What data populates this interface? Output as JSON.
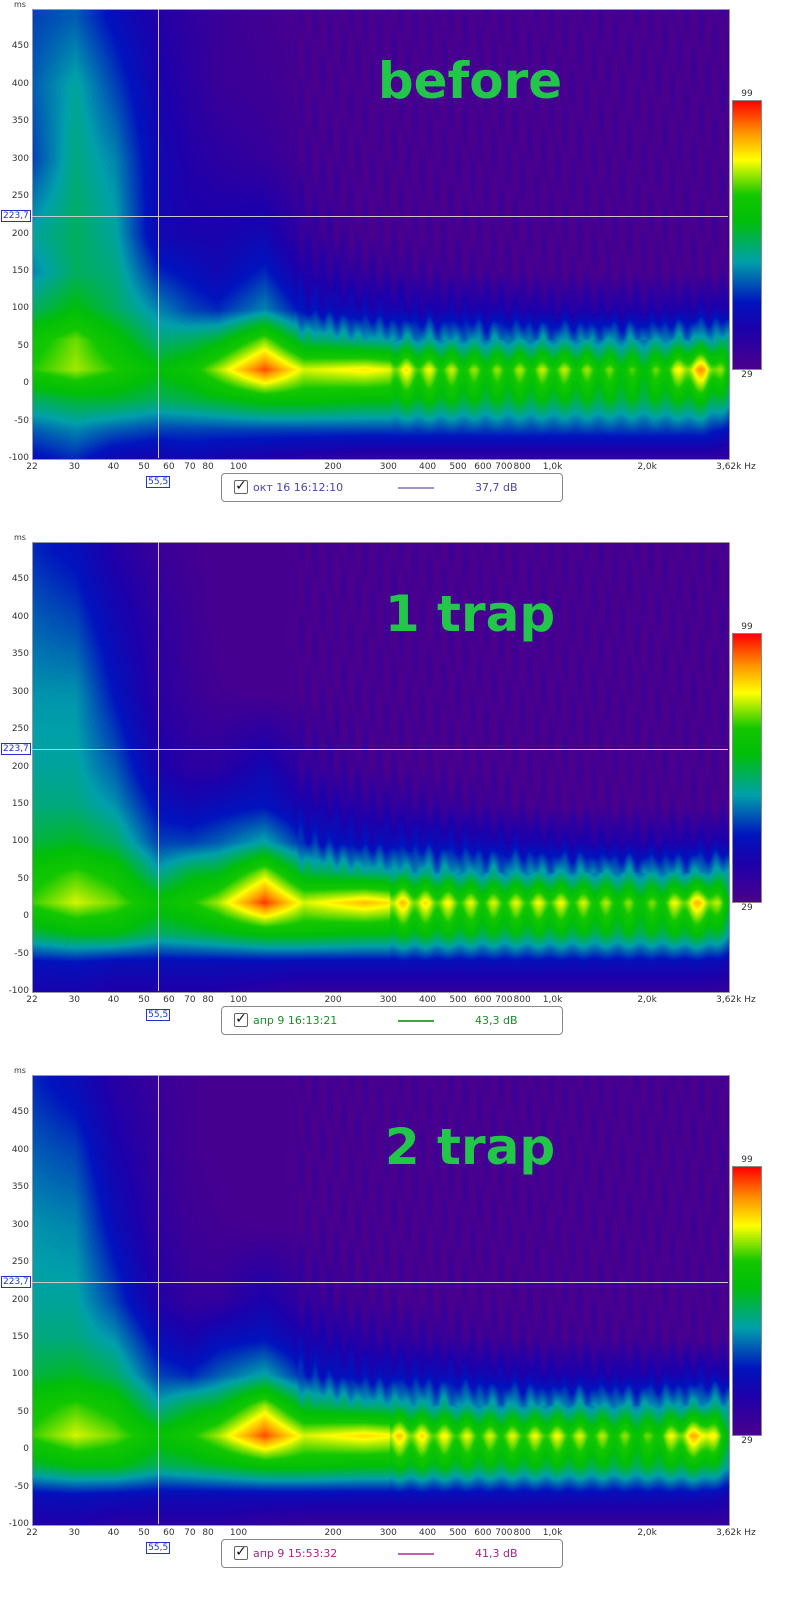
{
  "chart_data": [
    {
      "type": "heatmap",
      "title": "before",
      "ylabel": "ms",
      "xunit": "Hz",
      "xscale": "log",
      "xlim": [
        22,
        3620
      ],
      "ylim": [
        -100,
        500
      ],
      "yticks": [
        "450",
        "400",
        "350",
        "300",
        "250",
        "200",
        "150",
        "100",
        "50",
        "0",
        "-50",
        "-100"
      ],
      "xticks": [
        "22",
        "30",
        "40",
        "50",
        "60",
        "70",
        "80",
        "100",
        "200",
        "300",
        "400",
        "500",
        "600",
        "700",
        "800",
        "1,0k",
        "2,0k",
        "3,62k Hz"
      ],
      "colorbar": {
        "min": 29,
        "max": 99,
        "min_label": "29",
        "max_label": "99"
      },
      "cursor": {
        "freq": 55.5,
        "freq_label": "55,5",
        "time": 223.7,
        "time_label": "223,7"
      },
      "legend": {
        "checked": true,
        "label": "окт 16 16:12:10",
        "value": "37,7 dB",
        "text_color": "#4a48a8",
        "line_color": "#9a98c8"
      },
      "grid_freqs": [
        22,
        30,
        40,
        55,
        70,
        85,
        120,
        160,
        250,
        380,
        600,
        1000,
        2000,
        3000,
        3620
      ],
      "grid_times": [
        -100,
        -60,
        -20,
        20,
        60,
        100,
        150,
        200,
        300,
        400,
        490
      ],
      "values_db": [
        [
          45,
          48,
          42,
          40,
          42,
          40,
          38,
          36,
          34,
          34,
          34,
          34,
          34,
          34,
          34
        ],
        [
          52,
          55,
          52,
          50,
          50,
          50,
          50,
          50,
          50,
          50,
          50,
          50,
          50,
          50,
          45
        ],
        [
          62,
          65,
          65,
          62,
          64,
          66,
          70,
          70,
          68,
          68,
          66,
          66,
          65,
          68,
          60
        ],
        [
          75,
          80,
          75,
          68,
          72,
          80,
          95,
          82,
          85,
          80,
          75,
          78,
          72,
          88,
          70
        ],
        [
          72,
          78,
          70,
          60,
          62,
          65,
          78,
          62,
          58,
          56,
          55,
          55,
          55,
          58,
          58
        ],
        [
          62,
          68,
          62,
          55,
          50,
          48,
          55,
          45,
          42,
          40,
          40,
          38,
          38,
          40,
          40
        ],
        [
          55,
          62,
          60,
          48,
          45,
          42,
          48,
          38,
          34,
          32,
          31,
          30,
          30,
          30,
          30
        ],
        [
          58,
          62,
          58,
          42,
          40,
          40,
          42,
          34,
          30,
          30,
          30,
          30,
          30,
          30,
          30
        ],
        [
          50,
          60,
          55,
          42,
          38,
          36,
          34,
          31,
          30,
          30,
          30,
          30,
          30,
          30,
          30
        ],
        [
          52,
          58,
          50,
          40,
          36,
          33,
          32,
          30,
          30,
          30,
          30,
          30,
          30,
          30,
          30
        ],
        [
          50,
          52,
          45,
          38,
          35,
          33,
          31,
          30,
          30,
          30,
          30,
          30,
          30,
          30,
          30
        ]
      ]
    },
    {
      "type": "heatmap",
      "title": "1 trap",
      "ylabel": "ms",
      "xunit": "Hz",
      "xscale": "log",
      "xlim": [
        22,
        3620
      ],
      "ylim": [
        -100,
        500
      ],
      "yticks": [
        "450",
        "400",
        "350",
        "300",
        "250",
        "200",
        "150",
        "100",
        "50",
        "0",
        "-50",
        "-100"
      ],
      "xticks": [
        "22",
        "30",
        "40",
        "50",
        "60",
        "70",
        "80",
        "100",
        "200",
        "300",
        "400",
        "500",
        "600",
        "700",
        "800",
        "1,0k",
        "2,0k",
        "3,62k Hz"
      ],
      "colorbar": {
        "min": 29,
        "max": 99,
        "min_label": "29",
        "max_label": "99"
      },
      "cursor": {
        "freq": 55.5,
        "freq_label": "55,5",
        "time": 223.7,
        "time_label": "223,7"
      },
      "legend": {
        "checked": true,
        "label": "апр 9 16:13:21",
        "value": "43,3 dB",
        "text_color": "#1e8a2a",
        "line_color": "#3aa83a"
      },
      "grid_freqs": [
        22,
        30,
        40,
        55,
        70,
        85,
        120,
        160,
        250,
        380,
        600,
        1000,
        2000,
        3000,
        3620
      ],
      "grid_times": [
        -100,
        -60,
        -20,
        20,
        60,
        100,
        150,
        200,
        300,
        400,
        490
      ],
      "values_db": [
        [
          40,
          40,
          38,
          38,
          38,
          38,
          36,
          34,
          34,
          34,
          34,
          34,
          34,
          34,
          34
        ],
        [
          45,
          46,
          44,
          44,
          44,
          44,
          44,
          44,
          44,
          44,
          44,
          44,
          44,
          44,
          42
        ],
        [
          64,
          68,
          68,
          62,
          64,
          66,
          70,
          70,
          68,
          68,
          66,
          66,
          65,
          68,
          60
        ],
        [
          76,
          82,
          78,
          70,
          74,
          80,
          96,
          82,
          88,
          82,
          78,
          80,
          74,
          86,
          70
        ],
        [
          72,
          76,
          72,
          58,
          65,
          66,
          80,
          64,
          60,
          58,
          56,
          56,
          55,
          56,
          58
        ],
        [
          64,
          66,
          62,
          50,
          50,
          52,
          58,
          48,
          44,
          44,
          42,
          40,
          38,
          40,
          40
        ],
        [
          60,
          60,
          56,
          45,
          42,
          44,
          46,
          40,
          36,
          34,
          32,
          30,
          30,
          30,
          30
        ],
        [
          58,
          58,
          52,
          40,
          36,
          36,
          42,
          34,
          31,
          30,
          30,
          30,
          30,
          30,
          30
        ],
        [
          56,
          56,
          46,
          36,
          33,
          31,
          30,
          30,
          30,
          30,
          30,
          30,
          30,
          30,
          30
        ],
        [
          52,
          50,
          42,
          35,
          32,
          30,
          30,
          30,
          30,
          30,
          30,
          30,
          30,
          30,
          30
        ],
        [
          48,
          45,
          38,
          33,
          31,
          30,
          30,
          30,
          30,
          30,
          30,
          30,
          30,
          30,
          30
        ]
      ]
    },
    {
      "type": "heatmap",
      "title": "2 trap",
      "ylabel": "ms",
      "xunit": "Hz",
      "xscale": "log",
      "xlim": [
        22,
        3620
      ],
      "ylim": [
        -100,
        500
      ],
      "yticks": [
        "450",
        "400",
        "350",
        "300",
        "250",
        "200",
        "150",
        "100",
        "50",
        "0",
        "-50",
        "-100"
      ],
      "xticks": [
        "22",
        "30",
        "40",
        "50",
        "60",
        "70",
        "80",
        "100",
        "200",
        "300",
        "400",
        "500",
        "600",
        "700",
        "800",
        "1,0k",
        "2,0k",
        "3,62k Hz"
      ],
      "colorbar": {
        "min": 29,
        "max": 99,
        "min_label": "29",
        "max_label": "99"
      },
      "cursor": {
        "freq": 55.5,
        "freq_label": "55,5",
        "time": 223.7,
        "time_label": "223,7"
      },
      "legend": {
        "checked": true,
        "label": "апр 9 15:53:32",
        "value": "41,3 dB",
        "text_color": "#a0288a",
        "line_color": "#c060b0"
      },
      "grid_freqs": [
        22,
        30,
        40,
        55,
        70,
        85,
        120,
        160,
        250,
        380,
        600,
        1000,
        2000,
        3000,
        3620
      ],
      "grid_times": [
        -100,
        -60,
        -20,
        20,
        60,
        100,
        150,
        200,
        300,
        400,
        490
      ],
      "values_db": [
        [
          38,
          38,
          36,
          36,
          36,
          36,
          34,
          33,
          33,
          33,
          33,
          33,
          33,
          33,
          33
        ],
        [
          44,
          45,
          44,
          43,
          43,
          43,
          43,
          43,
          43,
          43,
          43,
          43,
          43,
          43,
          41
        ],
        [
          64,
          68,
          68,
          62,
          64,
          66,
          70,
          70,
          68,
          68,
          66,
          66,
          65,
          68,
          60
        ],
        [
          76,
          82,
          78,
          70,
          74,
          80,
          95,
          82,
          86,
          82,
          78,
          80,
          74,
          88,
          70
        ],
        [
          72,
          76,
          72,
          58,
          64,
          66,
          80,
          64,
          60,
          58,
          56,
          56,
          56,
          58,
          58
        ],
        [
          64,
          66,
          62,
          50,
          48,
          52,
          58,
          48,
          44,
          44,
          42,
          40,
          40,
          42,
          40
        ],
        [
          60,
          60,
          56,
          44,
          40,
          44,
          46,
          40,
          36,
          34,
          32,
          31,
          31,
          30,
          30
        ],
        [
          58,
          58,
          50,
          38,
          34,
          34,
          40,
          34,
          31,
          30,
          30,
          30,
          30,
          30,
          30
        ],
        [
          56,
          55,
          44,
          35,
          32,
          31,
          30,
          30,
          30,
          30,
          30,
          30,
          30,
          30,
          30
        ],
        [
          52,
          50,
          40,
          34,
          31,
          30,
          30,
          30,
          30,
          30,
          30,
          30,
          30,
          30,
          30
        ],
        [
          48,
          44,
          37,
          33,
          31,
          30,
          30,
          30,
          30,
          30,
          30,
          30,
          30,
          30,
          30
        ]
      ]
    }
  ]
}
